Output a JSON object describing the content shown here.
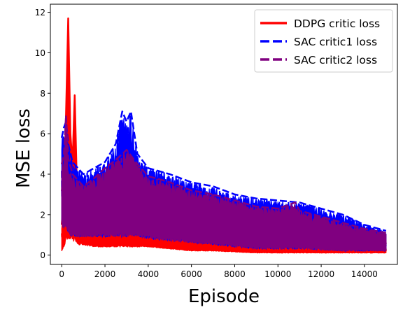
{
  "chart_data": {
    "type": "line",
    "title": "",
    "xlabel": "Episode",
    "ylabel": "MSE loss",
    "xlim": [
      -525,
      15525
    ],
    "ylim": [
      -0.46,
      12.4
    ],
    "xticks": [
      0,
      2000,
      4000,
      6000,
      8000,
      10000,
      12000,
      14000
    ],
    "yticks": [
      0,
      2,
      4,
      6,
      8,
      10,
      12
    ],
    "grid": false,
    "legend_position": "top-right",
    "series": [
      {
        "name": "DDPG critic loss",
        "color": "#ff0000",
        "style": "solid",
        "band": {
          "x": [
            0,
            100,
            200,
            300,
            400,
            500,
            600,
            700,
            800,
            1000,
            1500,
            2000,
            2500,
            3000,
            3500,
            4000,
            5000,
            6000,
            7000,
            8000,
            9000,
            10000,
            11000,
            12000,
            13000,
            14000,
            15000
          ],
          "upper": [
            1.5,
            3.0,
            7.0,
            11.7,
            6.0,
            4.5,
            7.9,
            3.5,
            2.5,
            1.6,
            1.3,
            1.2,
            1.5,
            1.6,
            1.4,
            1.2,
            1.0,
            0.9,
            0.8,
            0.7,
            0.6,
            0.6,
            0.5,
            0.5,
            0.5,
            0.5,
            0.5
          ],
          "lower": [
            0.2,
            0.4,
            0.6,
            0.8,
            0.8,
            0.7,
            0.6,
            0.6,
            0.5,
            0.5,
            0.4,
            0.4,
            0.4,
            0.4,
            0.4,
            0.4,
            0.3,
            0.2,
            0.2,
            0.15,
            0.1,
            0.1,
            0.1,
            0.1,
            0.1,
            0.1,
            0.1
          ]
        }
      },
      {
        "name": "SAC critic1 loss",
        "color": "#0000ff",
        "style": "dashed",
        "band": {
          "x": [
            0,
            100,
            200,
            300,
            500,
            1000,
            1500,
            2000,
            2500,
            2800,
            3000,
            3200,
            3500,
            4000,
            5000,
            6000,
            7000,
            8000,
            9000,
            10000,
            11000,
            12000,
            13000,
            14000,
            15000
          ],
          "upper": [
            5.8,
            6.3,
            6.6,
            5.5,
            4.6,
            4.0,
            4.3,
            4.6,
            5.5,
            7.1,
            6.6,
            7.1,
            5.0,
            4.3,
            4.0,
            3.6,
            3.4,
            3.0,
            2.8,
            2.7,
            2.6,
            2.3,
            2.0,
            1.5,
            1.2
          ],
          "lower": [
            1.5,
            1.4,
            1.2,
            1.0,
            0.9,
            0.9,
            0.9,
            0.9,
            0.9,
            0.9,
            0.9,
            0.9,
            0.9,
            0.8,
            0.7,
            0.6,
            0.5,
            0.4,
            0.3,
            0.3,
            0.3,
            0.25,
            0.2,
            0.2,
            0.2
          ]
        }
      },
      {
        "name": "SAC critic2 loss",
        "color": "#800080",
        "style": "dashed",
        "band": {
          "x": [
            0,
            100,
            200,
            300,
            500,
            1000,
            1500,
            2000,
            2500,
            3000,
            3500,
            4000,
            5000,
            6000,
            7000,
            8000,
            9000,
            10000,
            10800,
            11000,
            12000,
            13000,
            14000,
            15000
          ],
          "upper": [
            4.5,
            5.0,
            6.9,
            4.8,
            4.0,
            3.4,
            3.8,
            4.3,
            4.7,
            5.2,
            4.5,
            3.9,
            3.6,
            3.2,
            3.0,
            2.7,
            2.4,
            2.3,
            2.6,
            2.2,
            1.9,
            1.6,
            1.3,
            1.1
          ],
          "lower": [
            1.4,
            1.3,
            1.2,
            1.0,
            0.9,
            0.9,
            0.9,
            0.9,
            0.9,
            0.9,
            0.9,
            0.8,
            0.7,
            0.6,
            0.5,
            0.4,
            0.3,
            0.3,
            0.3,
            0.3,
            0.25,
            0.2,
            0.2,
            0.2
          ]
        }
      }
    ]
  }
}
